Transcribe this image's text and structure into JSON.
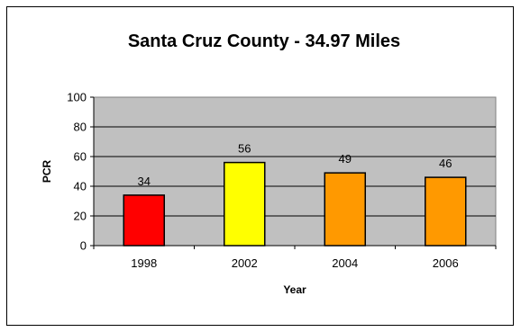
{
  "chart_data": {
    "type": "bar",
    "title": "Santa Cruz County - 34.97 Miles",
    "xlabel": "Year",
    "ylabel": "PCR",
    "categories": [
      "1998",
      "2002",
      "2004",
      "2006"
    ],
    "values": [
      34,
      56,
      49,
      46
    ],
    "colors": [
      "#ff0000",
      "#ffff00",
      "#ff9900",
      "#ff9900"
    ],
    "ylim": [
      0,
      100
    ],
    "yticks": [
      "0",
      "20",
      "40",
      "60",
      "80",
      "100"
    ],
    "data_labels": [
      "34",
      "56",
      "49",
      "46"
    ],
    "grid": true,
    "plot_background": "#c0c0c0",
    "legend": "none"
  }
}
